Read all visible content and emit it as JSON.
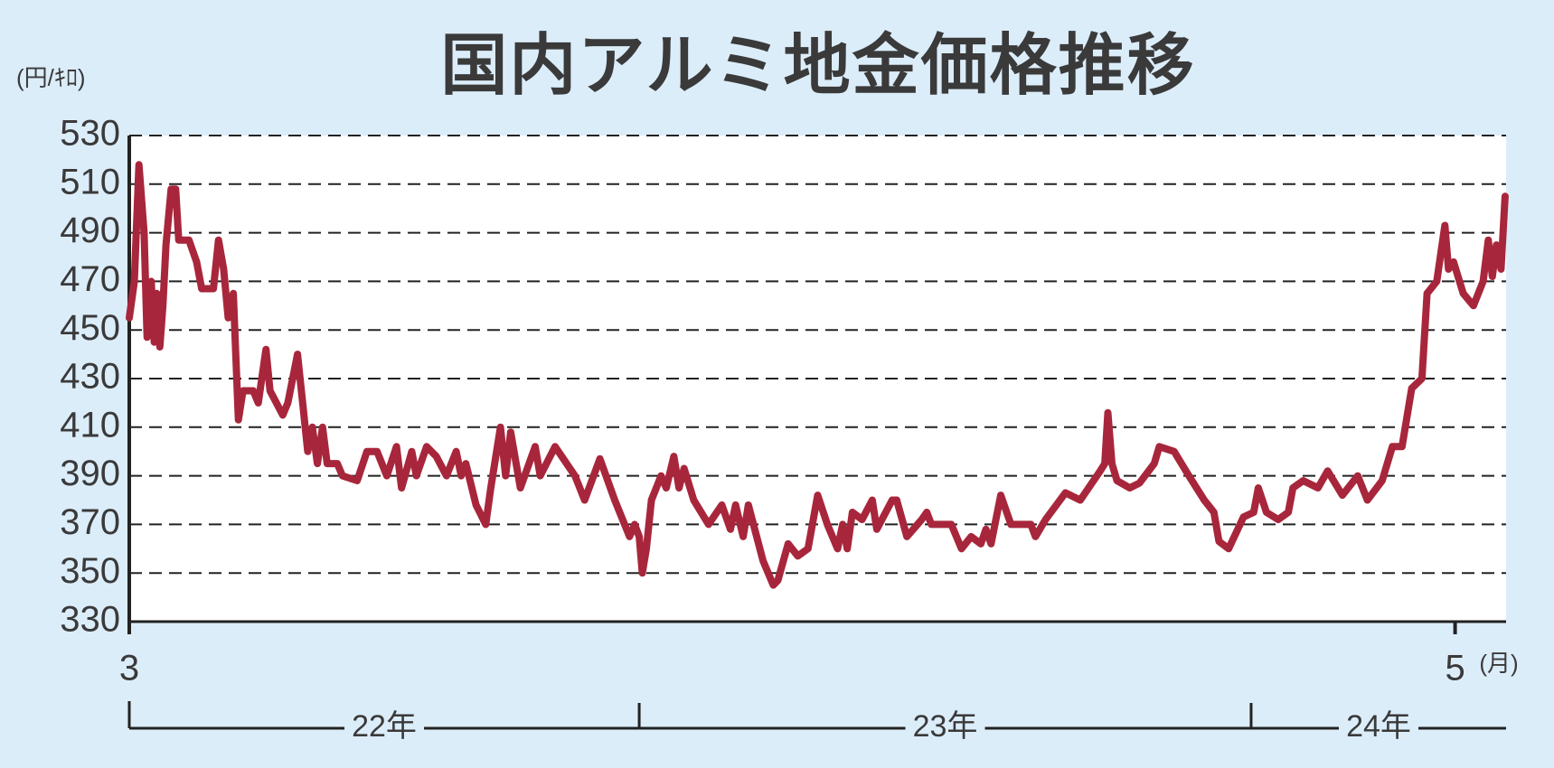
{
  "chart_data": {
    "type": "line",
    "title": "国内アルミ地金価格推移",
    "y_unit_label": "(円/ｷﾛ)",
    "x_unit_label": "(月)",
    "color": "#a8263b",
    "grid": true,
    "xlim": [
      0,
      27
    ],
    "xticks": [
      {
        "value": 0,
        "label": "3"
      },
      {
        "value": 26,
        "label": "5"
      }
    ],
    "ylim": [
      330,
      530
    ],
    "yticks": [
      330,
      350,
      370,
      390,
      410,
      430,
      450,
      470,
      490,
      510,
      530
    ],
    "year_spans": [
      {
        "label": "22年",
        "start": 0,
        "end": 10
      },
      {
        "label": "23年",
        "start": 10,
        "end": 22
      },
      {
        "label": "24年",
        "start": 22,
        "end": 27
      }
    ],
    "x": [
      0,
      0.1,
      0.19,
      0.29,
      0.35,
      0.43,
      0.49,
      0.54,
      0.6,
      0.66,
      0.72,
      0.82,
      0.91,
      0.97,
      1.17,
      1.32,
      1.42,
      1.65,
      1.75,
      1.85,
      1.94,
      2.04,
      2.14,
      2.23,
      2.43,
      2.53,
      2.68,
      2.76,
      3.01,
      3.11,
      3.3,
      3.4,
      3.5,
      3.59,
      3.69,
      3.79,
      3.88,
      4.08,
      4.18,
      4.47,
      4.66,
      4.86,
      5.05,
      5.24,
      5.34,
      5.54,
      5.63,
      5.83,
      6.02,
      6.22,
      6.41,
      6.51,
      6.6,
      6.8,
      6.99,
      7.09,
      7.28,
      7.38,
      7.48,
      7.67,
      7.96,
      8.06,
      8.35,
      8.74,
      8.93,
      9.23,
      9.52,
      9.81,
      9.91,
      10.0,
      10.06,
      10.14,
      10.24,
      10.43,
      10.53,
      10.68,
      10.78,
      10.88,
      11.07,
      11.36,
      11.62,
      11.79,
      11.89,
      12.04,
      12.14,
      12.43,
      12.63,
      12.72,
      12.92,
      13.11,
      13.31,
      13.5,
      13.69,
      13.89,
      13.99,
      14.08,
      14.18,
      14.37,
      14.57,
      14.66,
      14.96,
      15.05,
      15.25,
      15.54,
      15.64,
      15.73,
      16.12,
      16.32,
      16.51,
      16.7,
      16.8,
      16.9,
      17.09,
      17.29,
      17.68,
      17.77,
      17.97,
      18.36,
      18.65,
      19.04,
      19.13,
      19.19,
      19.27,
      19.37,
      19.62,
      19.81,
      20.1,
      20.2,
      20.49,
      20.78,
      21.08,
      21.27,
      21.37,
      21.56,
      21.85,
      22.05,
      22.14,
      22.3,
      22.53,
      22.73,
      22.82,
      23.02,
      23.31,
      23.5,
      23.79,
      24.09,
      24.28,
      24.57,
      24.77,
      24.96,
      25.15,
      25.35,
      25.45,
      25.64,
      25.8,
      25.87,
      25.97,
      26.16,
      26.36,
      26.55,
      26.65,
      26.73,
      26.81,
      26.9,
      26.98
    ],
    "values": [
      455,
      470,
      518,
      490,
      447,
      470,
      445,
      465,
      443,
      460,
      485,
      508,
      508,
      487,
      487,
      478,
      467,
      467,
      487,
      475,
      455,
      465,
      413,
      425,
      425,
      420,
      442,
      425,
      415,
      420,
      440,
      420,
      400,
      410,
      395,
      410,
      395,
      395,
      390,
      388,
      400,
      400,
      390,
      402,
      385,
      400,
      390,
      402,
      398,
      390,
      400,
      390,
      395,
      378,
      370,
      385,
      410,
      390,
      408,
      385,
      402,
      390,
      402,
      390,
      380,
      397,
      380,
      365,
      370,
      365,
      350,
      360,
      380,
      390,
      385,
      398,
      385,
      393,
      380,
      370,
      378,
      368,
      378,
      365,
      378,
      355,
      345,
      347,
      362,
      357,
      360,
      382,
      370,
      360,
      370,
      360,
      375,
      372,
      380,
      368,
      380,
      380,
      365,
      372,
      375,
      370,
      370,
      360,
      365,
      362,
      368,
      362,
      382,
      370,
      370,
      365,
      372,
      383,
      380,
      392,
      395,
      416,
      395,
      388,
      385,
      387,
      395,
      402,
      400,
      390,
      380,
      375,
      363,
      360,
      373,
      375,
      385,
      375,
      372,
      375,
      385,
      388,
      385,
      392,
      382,
      390,
      380,
      388,
      402,
      402,
      426,
      430,
      465,
      470,
      493,
      475,
      478,
      465,
      460,
      470,
      487,
      472,
      485,
      475,
      505
    ]
  }
}
